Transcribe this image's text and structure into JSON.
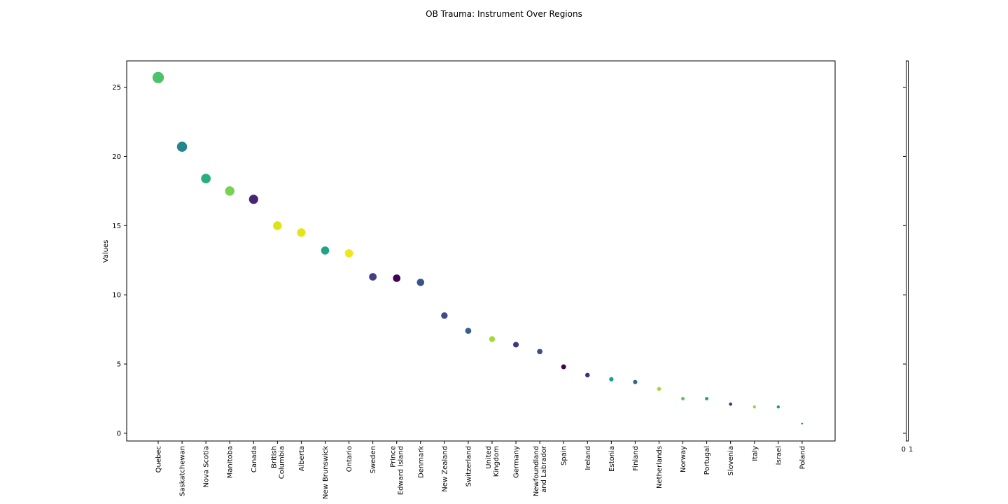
{
  "chart_data": {
    "type": "scatter",
    "title": "OB Trauma: Instrument Over Regions",
    "xlabel": "",
    "ylabel": "Values",
    "ylim": [
      -0.56,
      26.9
    ],
    "yticks": [
      0,
      5,
      10,
      15,
      20,
      25
    ],
    "grid": false,
    "categories": [
      "Quebec",
      "Saskatchewan",
      "Nova Scotia",
      "Manitoba",
      "Canada",
      "British Columbia",
      "Alberta",
      "New Brunswick",
      "Ontario",
      "Sweden",
      "Prince Edward Island",
      "Denmark",
      "New Zealand",
      "Switzerland",
      "United Kingdom",
      "Germany",
      "Newfoundland and Labrador",
      "Spain",
      "Ireland",
      "Estonia",
      "Finland",
      "Netherlands",
      "Norway",
      "Portugal",
      "Slovenia",
      "Italy",
      "Israel",
      "Poland"
    ],
    "values": [
      25.7,
      20.7,
      18.4,
      17.5,
      16.9,
      15.0,
      14.5,
      13.2,
      13.0,
      11.3,
      11.2,
      10.9,
      8.5,
      7.4,
      6.8,
      6.4,
      5.9,
      4.8,
      4.2,
      3.9,
      3.7,
      3.2,
      2.5,
      2.5,
      2.1,
      1.9,
      1.9,
      0.7
    ],
    "colors": [
      "#4cc26c",
      "#25858e",
      "#29af7f",
      "#7ad151",
      "#482475",
      "#dde318",
      "#e5e419",
      "#20a386",
      "#f1e51d",
      "#433e85",
      "#440154",
      "#3b528b",
      "#3e4a89",
      "#34618d",
      "#a0da39",
      "#463480",
      "#3e4c8a",
      "#440154",
      "#472d7b",
      "#1fa088",
      "#31688e",
      "#a2da37",
      "#54c568",
      "#22a785",
      "#46307e",
      "#90d743",
      "#1f9a8a",
      "#277f8e"
    ],
    "colorbar_tick_labels": [
      "0",
      "1"
    ]
  }
}
